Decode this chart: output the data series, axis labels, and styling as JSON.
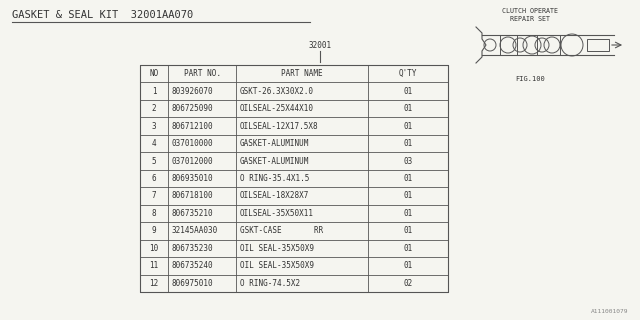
{
  "title": "GASKET & SEAL KIT  32001AA070",
  "bg_color": "#f5f5f0",
  "fig_label": "FIG.100",
  "part_label": "32001",
  "watermark": "A111001079",
  "clutch_label1": "CLUTCH OPERATE",
  "clutch_label2": "REPAIR SET",
  "headers": [
    "NO",
    "PART NO.",
    "PART NAME",
    "Q'TY"
  ],
  "rows": [
    [
      "1",
      "803926070",
      "GSKT-26.3X30X2.0",
      "01"
    ],
    [
      "2",
      "806725090",
      "OILSEAL-25X44X10",
      "01"
    ],
    [
      "3",
      "806712100",
      "OILSEAL-12X17.5X8",
      "01"
    ],
    [
      "4",
      "037010000",
      "GASKET-ALUMINUM",
      "01"
    ],
    [
      "5",
      "037012000",
      "GASKET-ALUMINUM",
      "03"
    ],
    [
      "6",
      "806935010",
      "O RING-35.4X1.5",
      "01"
    ],
    [
      "7",
      "806718100",
      "OILSEAL-18X28X7",
      "01"
    ],
    [
      "8",
      "806735210",
      "OILSEAL-35X50X11",
      "01"
    ],
    [
      "9",
      "32145AA030",
      "GSKT-CASE       RR",
      "01"
    ],
    [
      "10",
      "806735230",
      "OIL SEAL-35X50X9",
      "01"
    ],
    [
      "11",
      "806735240",
      "OIL SEAL-35X50X9",
      "01"
    ],
    [
      "12",
      "806975010",
      "O RING-74.5X2",
      "02"
    ]
  ],
  "font_size": 5.5,
  "title_font_size": 7.5,
  "small_font_size": 5.0,
  "line_color": "#555555",
  "text_color": "#333333"
}
